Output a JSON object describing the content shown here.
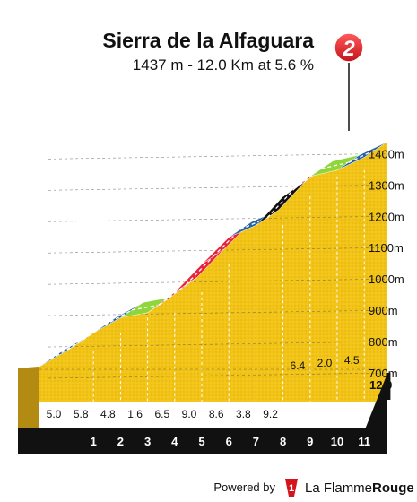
{
  "chart_data": {
    "type": "area",
    "title": "Sierra de la Alfaguara",
    "subtitle": "1437 m - 12.0 Km at 5.6 %",
    "category_badge": "2",
    "y_ticks": [
      "700m",
      "800m",
      "900m",
      "1000m",
      "1100m",
      "1200m",
      "1300m",
      "1400m"
    ],
    "ylim": [
      600,
      1437
    ],
    "distance_total_label": "12.0",
    "km_markers": [
      "1",
      "2",
      "3",
      "4",
      "5",
      "6",
      "7",
      "8",
      "9",
      "10",
      "11"
    ],
    "gradients": [
      "5.0",
      "5.8",
      "4.8",
      "1.6",
      "6.5",
      "9.0",
      "8.6",
      "3.8",
      "9.2",
      "6.4",
      "2.0",
      "4.5"
    ],
    "gradient_values": [
      5.0,
      5.8,
      4.8,
      1.6,
      6.5,
      9.0,
      8.6,
      3.8,
      9.2,
      6.4,
      2.0,
      4.5
    ],
    "x_km": [
      0,
      1,
      2,
      3,
      4,
      5,
      6,
      7,
      8,
      9,
      10,
      11,
      12
    ],
    "elevation_m": [
      769,
      819,
      877,
      925,
      941,
      1006,
      1096,
      1182,
      1220,
      1312,
      1376,
      1396,
      1437
    ],
    "grade_colors": {
      "low": "#8ed63a",
      "moderate": "#2363a3",
      "hard": "#e8243c",
      "very_hard": "#111111"
    },
    "fill_color": "#f2c416",
    "side_color": "#b38a12"
  },
  "footer": {
    "powered_by": "Powered by",
    "brand_light": "La Flamme",
    "brand_bold": "Rouge"
  }
}
